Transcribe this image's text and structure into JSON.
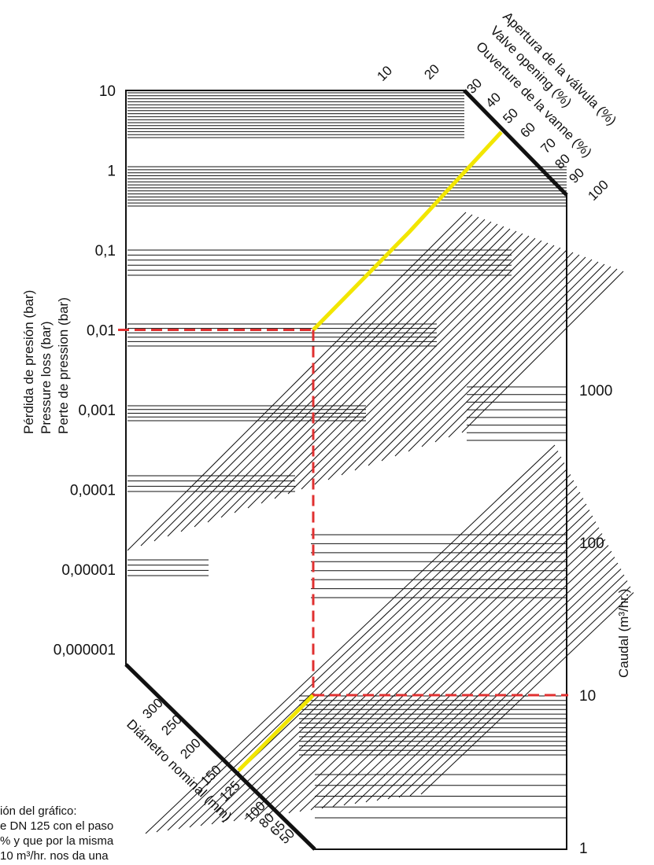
{
  "chart_data": {
    "type": "nomogram",
    "left_axis": {
      "label_lines": [
        "Pérdida de presión (bar)",
        "Pressure loss (bar)",
        "Perte de pression (bar)"
      ],
      "scale": "log",
      "ticks": [
        "10",
        "1",
        "0,1",
        "0,01",
        "0,001",
        "0,0001",
        "0,00001",
        "0,000001"
      ],
      "tick_values": [
        10,
        1,
        0.1,
        0.01,
        0.001,
        0.0001,
        1e-05,
        1e-06
      ]
    },
    "right_axis": {
      "label": "Caudal (m³/hr.)",
      "scale": "log",
      "ticks": [
        "1000",
        "100",
        "10",
        "1"
      ],
      "tick_values": [
        1000,
        100,
        10,
        1
      ]
    },
    "top_axis": {
      "label_lines": [
        "Apertura de la válvula (%)",
        "Valve opening (%)",
        "Ouverture de la vanne (%)"
      ],
      "ticks": [
        "10",
        "20",
        "30",
        "40",
        "50",
        "60",
        "70",
        "80",
        "90",
        "100"
      ]
    },
    "bottom_axis": {
      "label": "Diámetro nominal (mm)",
      "ticks": [
        "300",
        "250",
        "200",
        "150",
        "125",
        "100",
        "80",
        "65",
        "50"
      ]
    },
    "example": {
      "diameter_mm": 125,
      "valve_opening_pct": 50,
      "flow_m3h": 10,
      "pressure_loss_bar": 0.01,
      "path_color": "#f2e600",
      "guide_color": "#e03030"
    },
    "colors": {
      "lines": "#111111",
      "background": "#ffffff"
    }
  },
  "note": {
    "lines": [
      "ión del gráfico:",
      "e DN 125 con el paso",
      "% y que por la misma",
      "10 m³/hr. nos da una"
    ]
  }
}
